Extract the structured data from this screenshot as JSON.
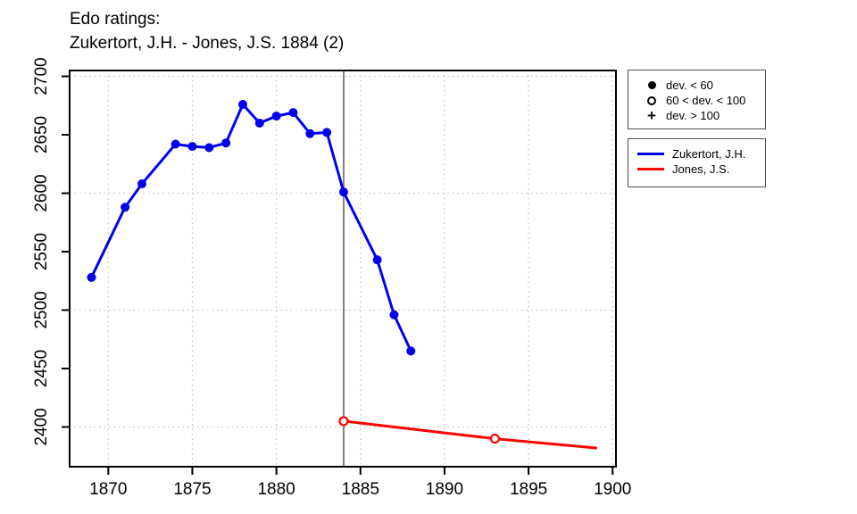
{
  "title": {
    "line1": "Edo ratings:",
    "line2": "Zukertort, J.H. - Jones, J.S. 1884 (2)"
  },
  "colors": {
    "series1": "#0000ee",
    "series2": "#ff0000",
    "event_line": "#808080",
    "grid": "#c4c4c4",
    "axis": "#000000",
    "legend_border": "#4d4d4d"
  },
  "marker_legend": {
    "items": [
      {
        "symbol": "filled-circle",
        "label": "dev. < 60"
      },
      {
        "symbol": "open-circle",
        "label": "60 < dev. < 100"
      },
      {
        "symbol": "plus",
        "label": "dev. > 100"
      }
    ]
  },
  "series_legend": {
    "items": [
      {
        "color": "#0000ee",
        "label": "Zukertort, J.H."
      },
      {
        "color": "#ff0000",
        "label": "Jones, J.S."
      }
    ]
  },
  "chart_data": {
    "type": "line",
    "title": "Edo ratings: Zukertort, J.H. - Jones, J.S. 1884 (2)",
    "xlabel": "",
    "ylabel": "",
    "grid": true,
    "legend_position": "right",
    "x_ticks": [
      1870,
      1875,
      1880,
      1885,
      1890,
      1895,
      1900
    ],
    "y_ticks": [
      2400,
      2450,
      2500,
      2550,
      2600,
      2650,
      2700
    ],
    "x_gridlines": [
      1870,
      1875,
      1880,
      1885,
      1890,
      1895,
      1900
    ],
    "y_gridlines": [
      2400,
      2500,
      2600,
      2700
    ],
    "xlim": [
      1867.7,
      1900.2
    ],
    "ylim": [
      2366,
      2705
    ],
    "event_line_x": 1884,
    "series": [
      {
        "name": "Zukertort, J.H.",
        "color": "#0000ee",
        "default_marker": "filled-circle",
        "points": [
          {
            "x": 1869,
            "y": 2528
          },
          {
            "x": 1871,
            "y": 2588
          },
          {
            "x": 1872,
            "y": 2608
          },
          {
            "x": 1874,
            "y": 2642
          },
          {
            "x": 1875,
            "y": 2640
          },
          {
            "x": 1876,
            "y": 2639
          },
          {
            "x": 1877,
            "y": 2643
          },
          {
            "x": 1878,
            "y": 2676
          },
          {
            "x": 1879,
            "y": 2660
          },
          {
            "x": 1880,
            "y": 2666
          },
          {
            "x": 1881,
            "y": 2669
          },
          {
            "x": 1882,
            "y": 2651
          },
          {
            "x": 1883,
            "y": 2652
          },
          {
            "x": 1884,
            "y": 2601
          },
          {
            "x": 1886,
            "y": 2543
          },
          {
            "x": 1887,
            "y": 2496
          },
          {
            "x": 1888,
            "y": 2465
          }
        ]
      },
      {
        "name": "Jones, J.S.",
        "color": "#ff0000",
        "default_marker": "open-circle",
        "points": [
          {
            "x": 1884,
            "y": 2405
          },
          {
            "x": 1893,
            "y": 2390
          },
          {
            "x": 1899,
            "y": 2382,
            "marker": "none"
          }
        ]
      }
    ]
  }
}
